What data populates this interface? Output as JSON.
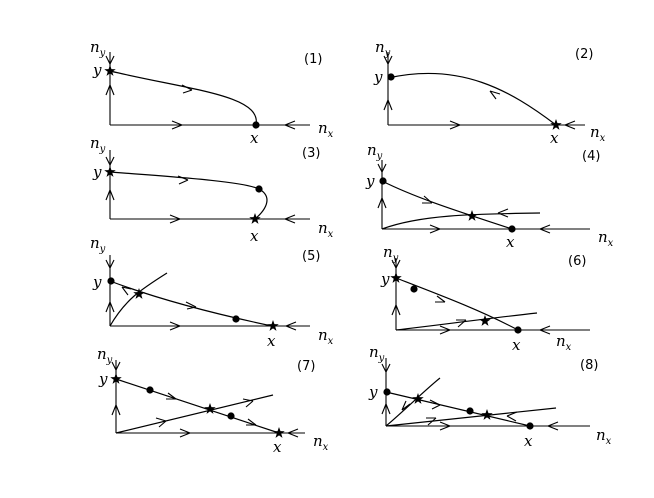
{
  "labels": {
    "nx": "n",
    "nx_sub": "x",
    "ny": "n",
    "ny_sub": "y",
    "x": "x",
    "y": "y"
  },
  "panels": [
    {
      "number": "(1)"
    },
    {
      "number": "(2)"
    },
    {
      "number": "(3)"
    },
    {
      "number": "(4)"
    },
    {
      "number": "(5)"
    },
    {
      "number": "(6)"
    },
    {
      "number": "(7)"
    },
    {
      "number": "(8)"
    }
  ]
}
